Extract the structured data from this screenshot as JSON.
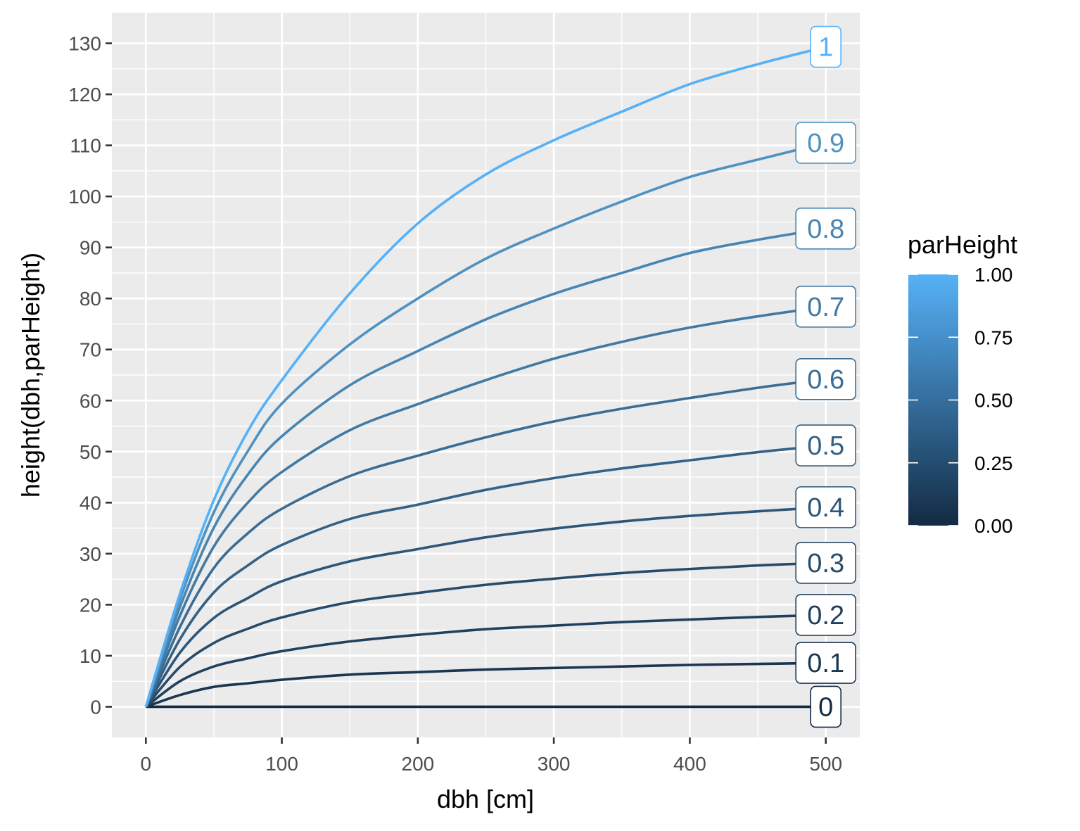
{
  "chart_data": {
    "type": "line",
    "title": "",
    "xlabel": "dbh [cm]",
    "ylabel": "height(dbh,parHeight)",
    "xlim": [
      -25,
      525
    ],
    "ylim": [
      -6,
      136
    ],
    "x_ticks": [
      0,
      100,
      200,
      300,
      400,
      500
    ],
    "y_ticks": [
      0,
      10,
      20,
      30,
      40,
      50,
      60,
      70,
      80,
      90,
      100,
      110,
      120,
      130
    ],
    "grid": true,
    "legend": {
      "title": "parHeight",
      "position": "right",
      "type": "colorbar",
      "range": [
        0,
        1
      ],
      "breaks": [
        "0.00",
        "0.25",
        "0.50",
        "0.75",
        "1.00"
      ],
      "color_low": "#132B43",
      "color_high": "#56B1F7"
    },
    "x": [
      0,
      25,
      50,
      75,
      100,
      150,
      200,
      250,
      300,
      350,
      400,
      450,
      500
    ],
    "series": [
      {
        "name": "0",
        "parHeight": 0.0,
        "color": "#132B43",
        "values": [
          0,
          0,
          0,
          0,
          0,
          0,
          0,
          0,
          0,
          0,
          0,
          0,
          0
        ]
      },
      {
        "name": "0.1",
        "parHeight": 0.1,
        "color": "#1A3650",
        "values": [
          0,
          2.3,
          3.9,
          4.6,
          5.3,
          6.3,
          6.8,
          7.3,
          7.6,
          7.9,
          8.2,
          8.4,
          8.6
        ]
      },
      {
        "name": "0.2",
        "parHeight": 0.2,
        "color": "#20405D",
        "values": [
          0,
          5.0,
          7.9,
          9.5,
          10.9,
          12.8,
          14.1,
          15.2,
          15.9,
          16.6,
          17.1,
          17.6,
          18.0
        ]
      },
      {
        "name": "0.3",
        "parHeight": 0.3,
        "color": "#274B6A",
        "values": [
          0,
          7.8,
          12.5,
          15.3,
          17.5,
          20.5,
          22.3,
          23.9,
          25.1,
          26.2,
          27.0,
          27.7,
          28.2
        ]
      },
      {
        "name": "0.4",
        "parHeight": 0.4,
        "color": "#2D5678",
        "values": [
          0,
          10.6,
          17.4,
          21.3,
          24.6,
          28.5,
          30.9,
          33.2,
          34.9,
          36.3,
          37.4,
          38.3,
          39.1
        ]
      },
      {
        "name": "0.5",
        "parHeight": 0.5,
        "color": "#346186",
        "values": [
          0,
          13.2,
          22.4,
          27.7,
          31.7,
          36.8,
          39.6,
          42.5,
          44.8,
          46.7,
          48.3,
          49.9,
          51.2
        ]
      },
      {
        "name": "0.6",
        "parHeight": 0.6,
        "color": "#3B6D94",
        "values": [
          0,
          15.6,
          27.2,
          34.0,
          38.8,
          45.2,
          49.2,
          52.8,
          55.9,
          58.4,
          60.5,
          62.5,
          64.2
        ]
      },
      {
        "name": "0.7",
        "parHeight": 0.7,
        "color": "#4279A3",
        "values": [
          0,
          17.8,
          31.4,
          40.0,
          46.0,
          54.2,
          59.3,
          64.0,
          68.2,
          71.5,
          74.3,
          76.5,
          78.4
        ]
      },
      {
        "name": "0.8",
        "parHeight": 0.8,
        "color": "#4885B2",
        "values": [
          0,
          19.5,
          35.1,
          45.5,
          53.0,
          63.0,
          69.7,
          75.9,
          80.9,
          85.0,
          88.9,
          91.5,
          93.7
        ]
      },
      {
        "name": "0.9",
        "parHeight": 0.9,
        "color": "#4F92C1",
        "values": [
          0,
          21.0,
          38.1,
          50.1,
          59.4,
          71.0,
          80.0,
          87.8,
          93.7,
          99.0,
          103.8,
          107.2,
          110.5
        ]
      },
      {
        "name": "1",
        "parHeight": 1.0,
        "color": "#56B1F7",
        "values": [
          0,
          22.1,
          40.5,
          54.0,
          64.0,
          81.0,
          94.7,
          104.3,
          111.0,
          116.6,
          122.0,
          125.9,
          129.3
        ]
      }
    ]
  }
}
